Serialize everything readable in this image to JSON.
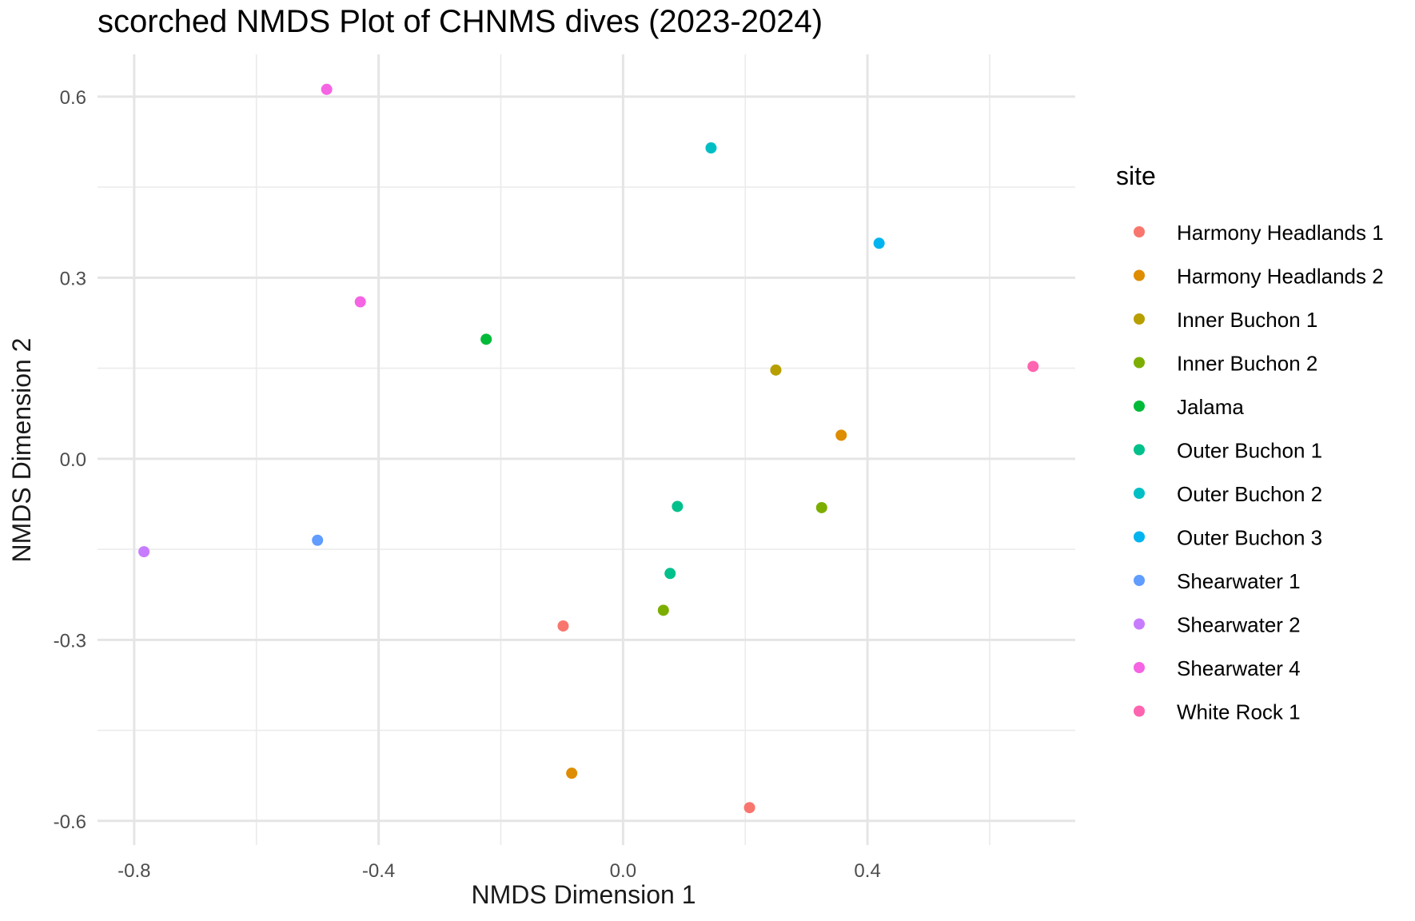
{
  "chart_data": {
    "type": "scatter",
    "title": "scorched NMDS Plot of CHNMS dives (2023-2024)",
    "xlabel": "NMDS Dimension 1",
    "ylabel": "NMDS Dimension 2",
    "xlim": [
      -0.86,
      0.74
    ],
    "ylim": [
      -0.64,
      0.67
    ],
    "x_ticks": [
      -0.8,
      -0.4,
      0.0,
      0.4
    ],
    "x_tick_labels": [
      "-0.8",
      "-0.4",
      "0.0",
      "0.4"
    ],
    "y_ticks": [
      -0.6,
      -0.3,
      0.0,
      0.3,
      0.6
    ],
    "y_tick_labels": [
      "-0.6",
      "-0.3",
      "0.0",
      "0.3",
      "0.6"
    ],
    "grid": true,
    "legend": {
      "title": "site",
      "position": "right"
    },
    "series": [
      {
        "name": "Harmony Headlands 1",
        "color": "#F8766D",
        "points": [
          [
            -0.098,
            -0.277
          ],
          [
            0.207,
            -0.578
          ]
        ]
      },
      {
        "name": "Harmony Headlands 2",
        "color": "#DE8C00",
        "points": [
          [
            -0.084,
            -0.521
          ],
          [
            0.357,
            0.039
          ]
        ]
      },
      {
        "name": "Inner Buchon 1",
        "color": "#B79F00",
        "points": [
          [
            0.25,
            0.147
          ]
        ]
      },
      {
        "name": "Inner Buchon 2",
        "color": "#7CAE00",
        "points": [
          [
            0.066,
            -0.251
          ],
          [
            0.325,
            -0.081
          ]
        ]
      },
      {
        "name": "Jalama",
        "color": "#00BA38",
        "points": [
          [
            -0.224,
            0.198
          ]
        ]
      },
      {
        "name": "Outer Buchon 1",
        "color": "#00C08B",
        "points": [
          [
            0.077,
            -0.19
          ],
          [
            0.089,
            -0.079
          ]
        ]
      },
      {
        "name": "Outer Buchon 2",
        "color": "#00BFC4",
        "points": [
          [
            0.144,
            0.515
          ]
        ]
      },
      {
        "name": "Outer Buchon 3",
        "color": "#00B4F0",
        "points": [
          [
            0.419,
            0.357
          ]
        ]
      },
      {
        "name": "Shearwater 1",
        "color": "#619CFF",
        "points": [
          [
            -0.5,
            -0.135
          ]
        ]
      },
      {
        "name": "Shearwater 2",
        "color": "#C77CFF",
        "points": [
          [
            -0.784,
            -0.154
          ]
        ]
      },
      {
        "name": "Shearwater 4",
        "color": "#F564E3",
        "points": [
          [
            -0.485,
            0.612
          ],
          [
            -0.43,
            0.26
          ]
        ]
      },
      {
        "name": "White Rock 1",
        "color": "#FF64B0",
        "points": [
          [
            0.671,
            0.153
          ]
        ]
      }
    ]
  }
}
